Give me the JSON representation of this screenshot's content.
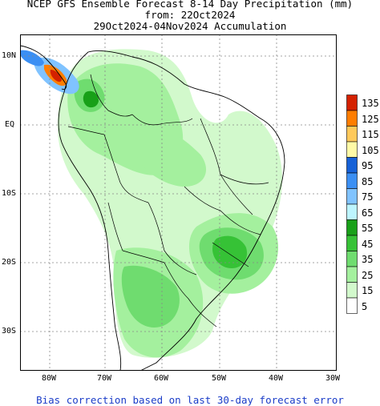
{
  "title_line1": "NCEP GFS Ensemble Forecast 8-14 Day Precipitation (mm)",
  "title_line2": "from: 22Oct2024",
  "title_line3": "29Oct2024-04Nov2024 Accumulation",
  "lat_labels": [
    "10N",
    "EQ",
    "10S",
    "20S",
    "30S"
  ],
  "lon_labels": [
    "80W",
    "70W",
    "60W",
    "50W",
    "40W",
    "30W"
  ],
  "legend": {
    "labels": [
      "135",
      "125",
      "115",
      "105",
      "95",
      "85",
      "75",
      "65",
      "55",
      "45",
      "35",
      "25",
      "15",
      "5"
    ],
    "colors": [
      "#d42100",
      "#ff7d00",
      "#ffc95a",
      "#fffaa6",
      "#1661d7",
      "#3b8ff3",
      "#80c3ff",
      "#bdf5ff",
      "#18a018",
      "#36c236",
      "#6fdc6f",
      "#a4f09e",
      "#d2f9cc",
      "#ffffff"
    ]
  },
  "footer": "Bias correction based on last 30-day forecast error"
}
